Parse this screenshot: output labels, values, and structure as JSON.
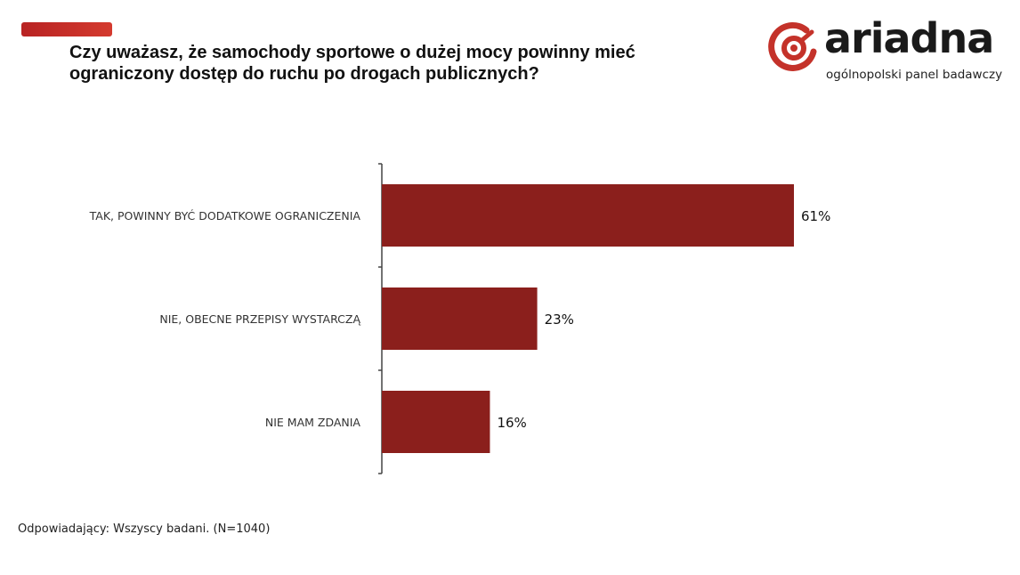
{
  "header": {
    "title": "Czy uważasz, że samochody sportowe o dużej mocy powinny mieć\nograniczony dostęp do ruchu po drogach publicznych?"
  },
  "logo": {
    "brand": "ariadna",
    "tagline": "ogólnopolski panel badawczy",
    "mark_color": "#c4322a"
  },
  "chart_data": {
    "type": "bar",
    "orientation": "horizontal",
    "categories": [
      "TAK, POWINNY BYĆ DODATKOWE OGRANICZENIA",
      "NIE, OBECNE PRZEPISY WYSTARCZĄ",
      "NIE MAM ZDANIA"
    ],
    "values": [
      61,
      23,
      16
    ],
    "data_labels": [
      "61%",
      "23%",
      "16%"
    ],
    "unit": "%",
    "xlim": [
      0,
      61
    ],
    "grid": false,
    "legend": "none",
    "bar_color": "#8b1f1c"
  },
  "footer": {
    "note": "Odpowiadający: Wszyscy badani. (N=1040)"
  }
}
